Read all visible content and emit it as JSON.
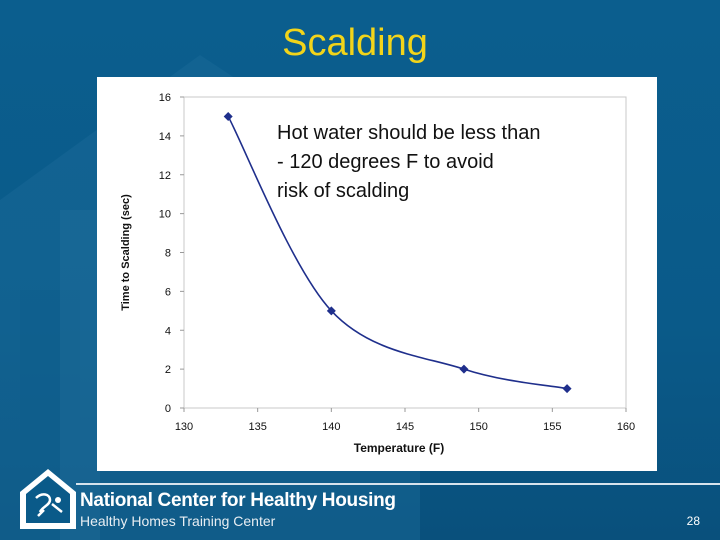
{
  "slide": {
    "title": "Scalding",
    "callout_lines": [
      "Hot water should be less than",
      "- 120 degrees F to avoid",
      "risk of scalding"
    ],
    "page_number": "28"
  },
  "footer": {
    "org_name": "National Center for Healthy Housing",
    "org_subtitle": "Healthy Homes Training Center"
  },
  "colors": {
    "background": "#0a5a89",
    "title": "#f2d41a",
    "series": "#1f2f8c"
  },
  "chart_data": {
    "type": "line",
    "title": "",
    "xlabel": "Temperature (F)",
    "ylabel": "Time to Scalding (sec)",
    "xlim": [
      130,
      160
    ],
    "ylim": [
      0,
      16
    ],
    "xticks": [
      130,
      135,
      140,
      145,
      150,
      155,
      160
    ],
    "yticks": [
      0,
      2,
      4,
      6,
      8,
      10,
      12,
      14,
      16
    ],
    "grid": false,
    "series": [
      {
        "name": "Time to Scalding",
        "x": [
          133,
          140,
          149,
          156
        ],
        "y": [
          15,
          5,
          2,
          1
        ]
      }
    ]
  }
}
